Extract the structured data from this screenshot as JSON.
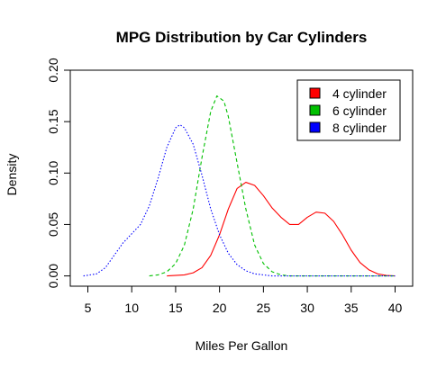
{
  "chart_data": {
    "type": "line",
    "title": "MPG Distribution by Car Cylinders",
    "xlabel": "Miles Per Gallon",
    "ylabel": "Density",
    "xlim": [
      3,
      42
    ],
    "ylim": [
      -0.01,
      0.2
    ],
    "xticks": [
      5,
      10,
      15,
      20,
      25,
      30,
      35,
      40
    ],
    "yticks": [
      0.0,
      0.05,
      0.1,
      0.15,
      0.2
    ],
    "xtick_labels": [
      "5",
      "10",
      "15",
      "20",
      "25",
      "30",
      "35",
      "40"
    ],
    "ytick_labels": [
      "0.00",
      "0.05",
      "0.10",
      "0.15",
      "0.20"
    ],
    "legend_position": "top-right",
    "grid": false,
    "series": [
      {
        "name": "4 cylinder",
        "color": "#ff0000",
        "dash": "solid",
        "x": [
          14,
          16,
          17,
          18,
          19,
          20,
          21,
          22,
          23,
          24,
          25,
          26,
          27,
          28,
          29,
          30,
          31,
          32,
          33,
          34,
          35,
          36,
          37,
          38,
          39,
          40
        ],
        "y": [
          0.0,
          0.001,
          0.003,
          0.008,
          0.02,
          0.04,
          0.065,
          0.085,
          0.091,
          0.088,
          0.078,
          0.066,
          0.057,
          0.05,
          0.05,
          0.057,
          0.062,
          0.061,
          0.053,
          0.04,
          0.025,
          0.013,
          0.006,
          0.002,
          0.0005,
          0.0
        ]
      },
      {
        "name": "6 cylinder",
        "color": "#00c000",
        "dash": "dashed",
        "x": [
          12,
          13,
          14,
          15,
          16,
          17,
          18,
          19,
          19.7,
          20.5,
          21,
          22,
          23,
          24,
          25,
          26,
          27,
          28,
          29,
          30,
          32,
          34,
          36,
          38,
          40
        ],
        "y": [
          0.0,
          0.001,
          0.004,
          0.012,
          0.03,
          0.065,
          0.115,
          0.16,
          0.175,
          0.17,
          0.155,
          0.11,
          0.065,
          0.03,
          0.012,
          0.004,
          0.001,
          0.0,
          0.0,
          0.0,
          0.0,
          0.0,
          0.0,
          0.0,
          0.0
        ]
      },
      {
        "name": "8 cylinder",
        "color": "#0000ff",
        "dash": "dotted",
        "x": [
          4.5,
          6,
          7,
          8,
          9,
          10,
          11,
          12,
          13,
          14,
          15,
          15.5,
          16,
          17,
          18,
          19,
          20,
          21,
          22,
          23,
          24,
          25,
          26,
          27,
          28,
          30,
          32,
          34,
          36,
          38,
          40
        ],
        "y": [
          0.0,
          0.002,
          0.008,
          0.02,
          0.032,
          0.041,
          0.05,
          0.068,
          0.095,
          0.125,
          0.144,
          0.147,
          0.144,
          0.128,
          0.098,
          0.065,
          0.04,
          0.022,
          0.011,
          0.005,
          0.002,
          0.001,
          0.0,
          0.0,
          0.0,
          0.0,
          0.0,
          0.0,
          0.0,
          0.0,
          0.0
        ]
      }
    ]
  }
}
